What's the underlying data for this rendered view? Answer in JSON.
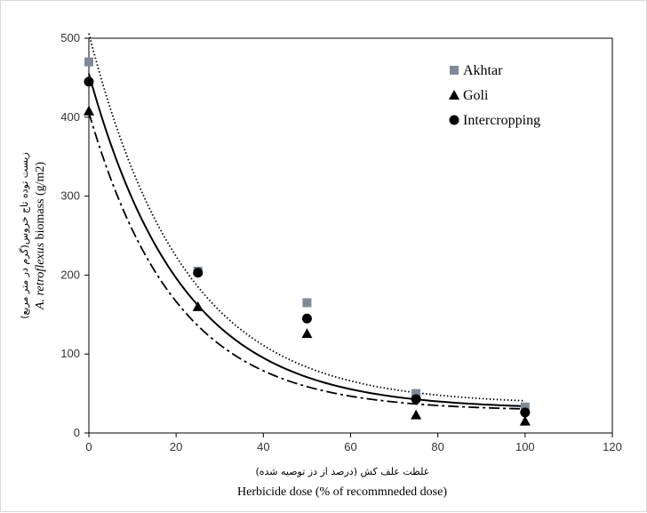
{
  "chart_data": {
    "type": "scatter",
    "xlabel_fa": "غلظت علف کش (درصد از دز توصیه شده)",
    "xlabel": "Herbicide dose (% of recommneded dose)",
    "ylabel_fa": "زیست توده تاج خروس(گرم در متر مربع)",
    "ylabel_italic": "A. retroflexus",
    "ylabel_rest": " biomass (g/m2)",
    "xlim": [
      0,
      120
    ],
    "ylim": [
      0,
      500
    ],
    "xticks": [
      "0",
      "20",
      "40",
      "60",
      "80",
      "100",
      "120"
    ],
    "yticks": [
      "0",
      "100",
      "200",
      "300",
      "400",
      "500"
    ],
    "grid": false,
    "legend_position": "top-right",
    "series": [
      {
        "name": "Akhtar",
        "marker": "square",
        "color": "#7f8a99",
        "x": [
          0,
          25,
          50,
          75,
          100
        ],
        "y": [
          470,
          205,
          165,
          50,
          33
        ],
        "fit": {
          "line_style": "dotted",
          "a": 470,
          "b": 0.0459,
          "c": 36
        }
      },
      {
        "name": "Goli",
        "marker": "triangle",
        "color": "#000000",
        "x": [
          0,
          25,
          50,
          75,
          100
        ],
        "y": [
          408,
          160,
          126,
          23,
          15
        ],
        "fit": {
          "line_style": "dashdot",
          "a": 378,
          "b": 0.0502,
          "c": 28
        }
      },
      {
        "name": "Intercropping",
        "marker": "circle",
        "color": "#000000",
        "x": [
          0,
          25,
          50,
          75,
          100
        ],
        "y": [
          445,
          203,
          145,
          43,
          26
        ],
        "fit": {
          "line_style": "solid",
          "a": 425,
          "b": 0.0469,
          "c": 30
        }
      }
    ]
  }
}
